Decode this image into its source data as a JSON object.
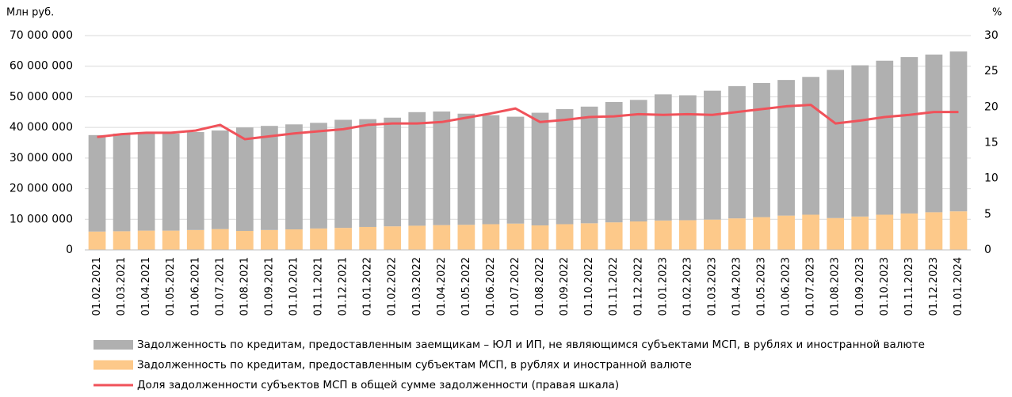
{
  "chart_data": {
    "type": "bar_line",
    "y_unit_label": "Млн руб.",
    "y2_unit_label": "%",
    "categories": [
      "01.02.2021",
      "01.03.2021",
      "01.04.2021",
      "01.05.2021",
      "01.06.2021",
      "01.07.2021",
      "01.08.2021",
      "01.09.2021",
      "01.10.2021",
      "01.11.2021",
      "01.12.2021",
      "01.01.2022",
      "01.02.2022",
      "01.03.2022",
      "01.04.2022",
      "01.05.2022",
      "01.06.2022",
      "01.07.2022",
      "01.08.2022",
      "01.09.2022",
      "01.10.2022",
      "01.11.2022",
      "01.12.2022",
      "01.01.2023",
      "01.02.2023",
      "01.03.2023",
      "01.04.2023",
      "01.05.2023",
      "01.06.2023",
      "01.07.2023",
      "01.08.2023",
      "01.09.2023",
      "01.10.2023",
      "01.11.2023",
      "01.12.2023",
      "01.01.2024"
    ],
    "series": [
      {
        "name": "Задолженность по кредитам, предоставленным заемщикам – ЮЛ и ИП, не являющимся субъектами МСП, в рублях и иностранной валюте",
        "type": "bar",
        "color": "#b0b0b0",
        "values": [
          31500000,
          31900000,
          31900000,
          31700000,
          32000000,
          32200000,
          33800000,
          34000000,
          34300000,
          34500000,
          35300000,
          35200000,
          35500000,
          37100000,
          37100000,
          36300000,
          35600000,
          34900000,
          36800000,
          37600000,
          38100000,
          39300000,
          39700000,
          41200000,
          40800000,
          42100000,
          43200000,
          43800000,
          44300000,
          45000000,
          48400000,
          49400000,
          50300000,
          51100000,
          51500000,
          52200000
        ]
      },
      {
        "name": "Задолженность по кредитам, предоставленным субъектам МСП, в рублях и иностранной валюте",
        "type": "bar",
        "color": "#fdc98a",
        "values": [
          6000000,
          6100000,
          6300000,
          6300000,
          6500000,
          6800000,
          6200000,
          6500000,
          6700000,
          7000000,
          7200000,
          7500000,
          7700000,
          7900000,
          8100000,
          8200000,
          8400000,
          8600000,
          8000000,
          8400000,
          8700000,
          9000000,
          9300000,
          9600000,
          9700000,
          9900000,
          10300000,
          10700000,
          11200000,
          11500000,
          10400000,
          10900000,
          11500000,
          11900000,
          12300000,
          12600000
        ]
      },
      {
        "name": "Доля задолженности субъектов МСП в общей сумме задолженности (правая шкала)",
        "type": "line",
        "axis": "y2",
        "color": "#f0525a",
        "values": [
          15.8,
          16.2,
          16.4,
          16.4,
          16.7,
          17.5,
          15.5,
          15.9,
          16.3,
          16.6,
          16.9,
          17.5,
          17.7,
          17.7,
          17.9,
          18.5,
          19.1,
          19.8,
          17.9,
          18.2,
          18.6,
          18.7,
          19.0,
          18.9,
          19.0,
          18.9,
          19.3,
          19.7,
          20.1,
          20.3,
          17.7,
          18.1,
          18.6,
          18.9,
          19.3,
          19.3
        ]
      }
    ],
    "ylim": [
      0,
      70000000
    ],
    "yticks": [
      0,
      {
        "value": 10000000,
        "label": "10 000 000"
      },
      {
        "value": 20000000,
        "label": "20 000 000"
      },
      {
        "value": 30000000,
        "label": "30 000 000"
      },
      {
        "value": 40000000,
        "label": "40 000 000"
      },
      {
        "value": 50000000,
        "label": "50 000 000"
      },
      {
        "value": 60000000,
        "label": "60 000 000"
      },
      {
        "value": 70000000,
        "label": "70 000 000"
      }
    ],
    "y2lim": [
      0,
      30
    ],
    "y2ticks": [
      0,
      5,
      10,
      15,
      20,
      25,
      30
    ],
    "grid": true
  }
}
